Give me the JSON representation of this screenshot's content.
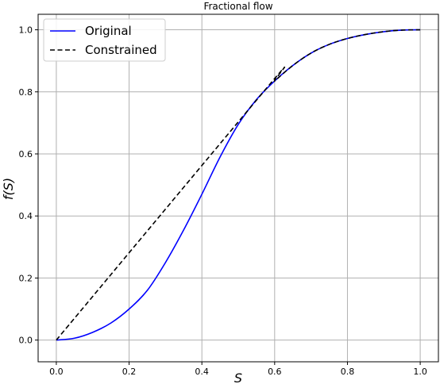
{
  "chart_data": {
    "type": "line",
    "title": "Fractional flow",
    "xlabel": "S",
    "ylabel": "f(S)",
    "xlim": [
      -0.05,
      1.05
    ],
    "ylim": [
      -0.07,
      1.05
    ],
    "xticks": [
      0.0,
      0.2,
      0.4,
      0.6,
      0.8,
      1.0
    ],
    "xtick_labels": [
      "0.0",
      "0.2",
      "0.4",
      "0.6",
      "0.8",
      "1.0"
    ],
    "yticks": [
      0.0,
      0.2,
      0.4,
      0.6,
      0.8,
      1.0
    ],
    "ytick_labels": [
      "0.0",
      "0.2",
      "0.4",
      "0.6",
      "0.8",
      "1.0"
    ],
    "grid": true,
    "legend_position": "upper-left",
    "series": [
      {
        "name": "Original",
        "color": "#0000ff",
        "style": "solid",
        "x": [
          0.0,
          0.05,
          0.1,
          0.15,
          0.2,
          0.25,
          0.3,
          0.35,
          0.4,
          0.45,
          0.5,
          0.55,
          0.6,
          0.65,
          0.7,
          0.75,
          0.8,
          0.85,
          0.9,
          0.95,
          1.0
        ],
        "y": [
          0.0,
          0.006,
          0.025,
          0.055,
          0.1,
          0.16,
          0.25,
          0.355,
          0.47,
          0.59,
          0.695,
          0.775,
          0.835,
          0.885,
          0.925,
          0.953,
          0.972,
          0.985,
          0.994,
          0.999,
          1.0
        ]
      },
      {
        "name": "Constrained",
        "color": "#000000",
        "style": "dashed",
        "x": [
          0.0,
          0.58,
          0.6,
          0.65,
          0.7,
          0.75,
          0.8,
          0.85,
          0.9,
          0.95,
          1.0
        ],
        "y": [
          0.0,
          0.815,
          0.835,
          0.885,
          0.925,
          0.953,
          0.972,
          0.985,
          0.994,
          0.999,
          1.0
        ]
      }
    ]
  }
}
